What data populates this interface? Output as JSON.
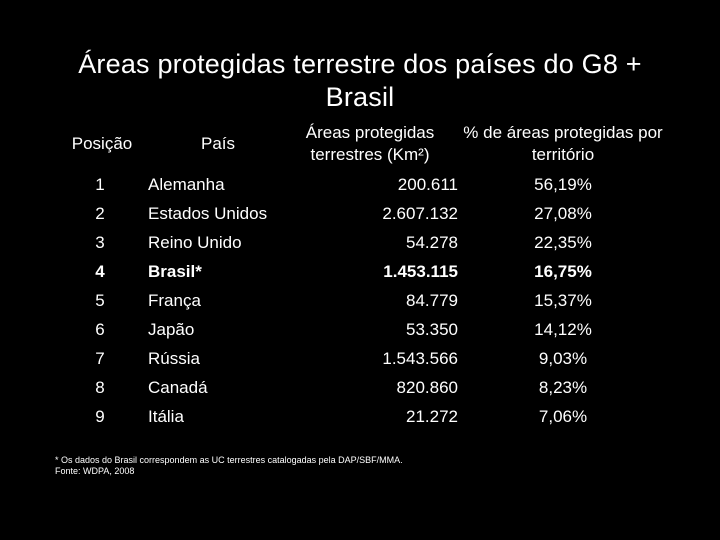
{
  "title": "Áreas protegidas terrestre dos países do G8 + Brasil",
  "headers": {
    "pos": "Posição",
    "pais": "País",
    "area": "Áreas protegidas terrestres (Km²)",
    "pct": "% de áreas protegidas por território"
  },
  "rows": [
    {
      "pos": "1",
      "pais": "Alemanha",
      "area": "200.611",
      "pct": "56,19%"
    },
    {
      "pos": "2",
      "pais": "Estados Unidos",
      "area": "2.607.132",
      "pct": "27,08%"
    },
    {
      "pos": "3",
      "pais": "Reino Unido",
      "area": "54.278",
      "pct": "22,35%"
    },
    {
      "pos": "4",
      "pais": "Brasil*",
      "area": "1.453.115",
      "pct": "16,75%",
      "highlight": true
    },
    {
      "pos": "5",
      "pais": "França",
      "area": "84.779",
      "pct": "15,37%"
    },
    {
      "pos": "6",
      "pais": "Japão",
      "area": "53.350",
      "pct": "14,12%"
    },
    {
      "pos": "7",
      "pais": "Rússia",
      "area": "1.543.566",
      "pct": "9,03%"
    },
    {
      "pos": "8",
      "pais": "Canadá",
      "area": "820.860",
      "pct": "8,23%"
    },
    {
      "pos": "9",
      "pais": "Itália",
      "area": "21.272",
      "pct": "7,06%"
    }
  ],
  "footnotes": {
    "note": "* Os dados do Brasil correspondem as UC terrestres catalogadas pela DAP/SBF/MMA.",
    "source": "Fonte: WDPA, 2008"
  }
}
